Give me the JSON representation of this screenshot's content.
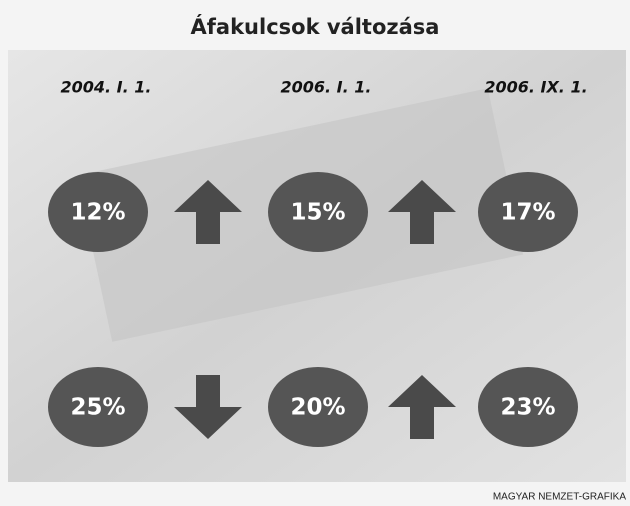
{
  "title": "Áfakulcsok változása",
  "dates": [
    "2004. I. 1.",
    "2006. I. 1.",
    "2006. IX. 1."
  ],
  "rows": [
    {
      "values": [
        "12%",
        "15%",
        "17%"
      ],
      "arrows": [
        "up",
        "up"
      ]
    },
    {
      "values": [
        "25%",
        "20%",
        "23%"
      ],
      "arrows": [
        "down",
        "up"
      ]
    }
  ],
  "credit": "MAGYAR NEMZET-GRAFIKA"
}
